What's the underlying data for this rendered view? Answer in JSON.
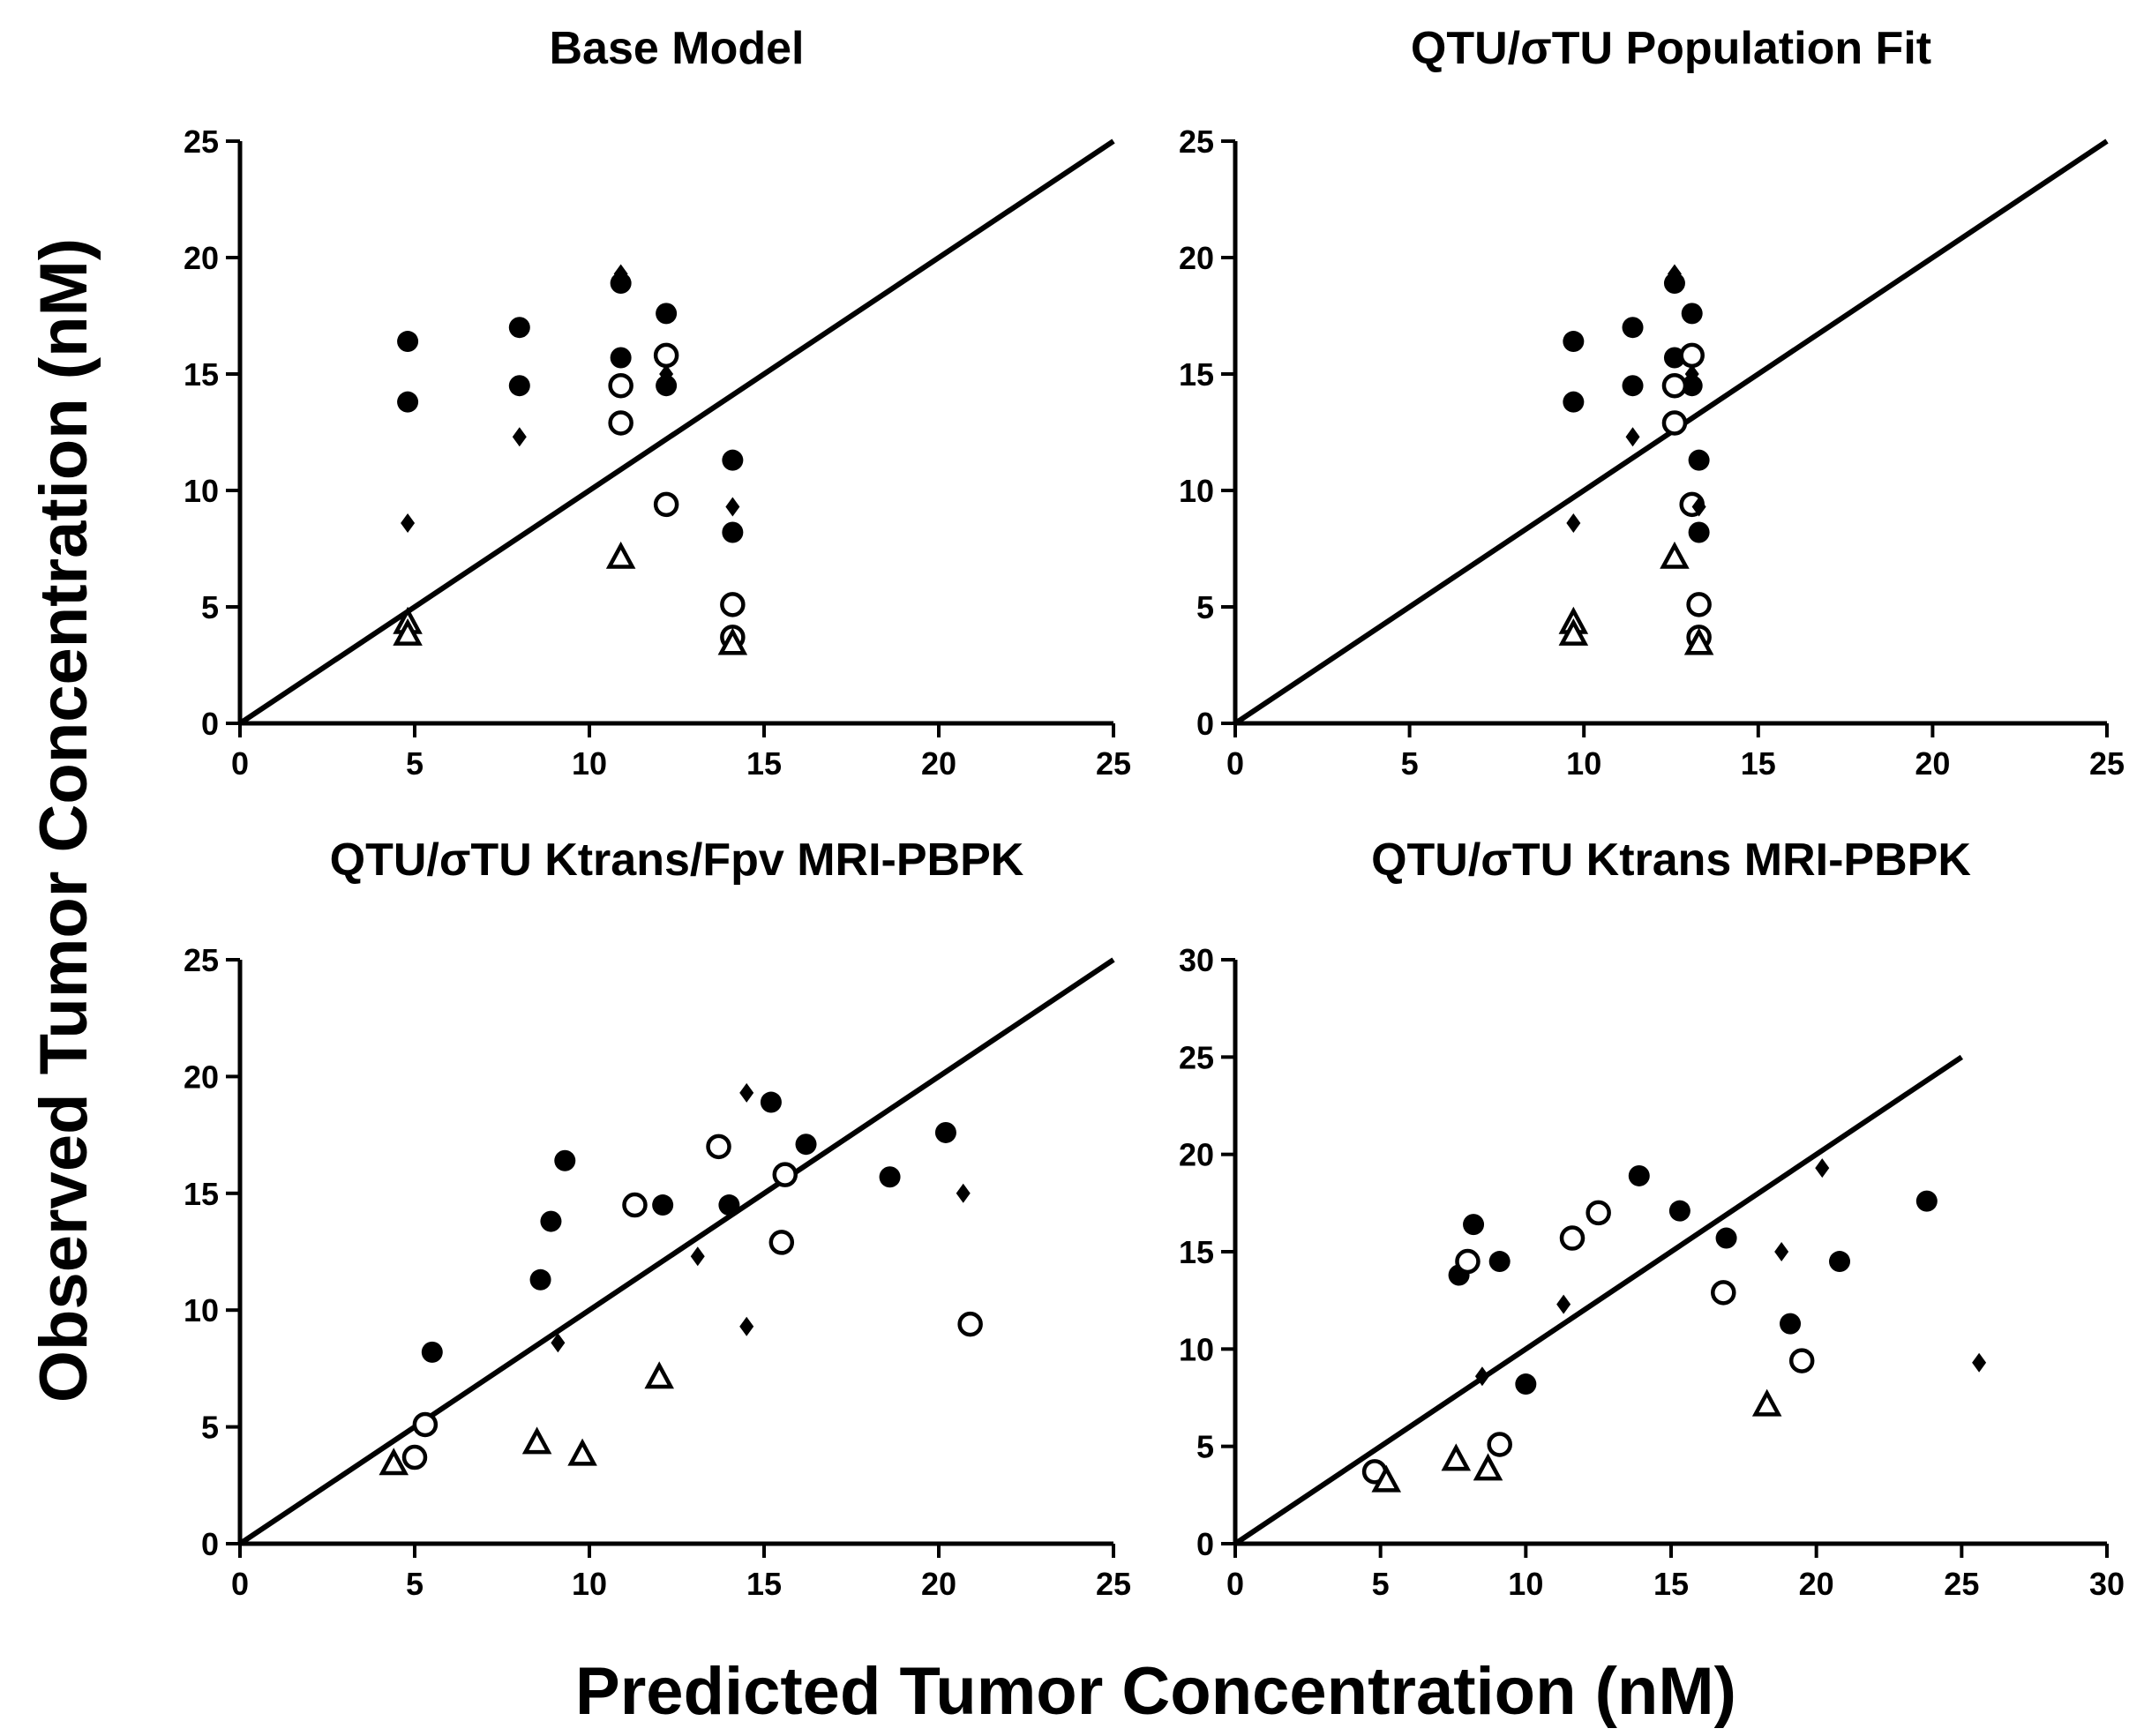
{
  "figure": {
    "xlabel": "Predicted Tumor Concentration (nM)",
    "ylabel": "Observed Tumor Concentration (nM)"
  },
  "chart_data": [
    {
      "type": "scatter",
      "title": "Base Model",
      "xlim": [
        0,
        25
      ],
      "ylim": [
        0,
        25
      ],
      "xticks": [
        "0",
        "5",
        "10",
        "15",
        "20",
        "25"
      ],
      "yticks": [
        "0",
        "5",
        "10",
        "15",
        "20",
        "25"
      ],
      "identity_line": [
        [
          0,
          0
        ],
        [
          25,
          25
        ]
      ],
      "series": [
        {
          "marker": "filled-circle",
          "points": [
            [
              4.8,
              16.4
            ],
            [
              4.8,
              13.8
            ],
            [
              8,
              17
            ],
            [
              8,
              14.5
            ],
            [
              10.9,
              18.9
            ],
            [
              10.9,
              15.7
            ],
            [
              12.2,
              17.6
            ],
            [
              12.2,
              14.5
            ],
            [
              14.1,
              11.3
            ],
            [
              14.1,
              8.2
            ]
          ]
        },
        {
          "marker": "open-circle",
          "points": [
            [
              10.9,
              14.5
            ],
            [
              10.9,
              12.9
            ],
            [
              12.2,
              15.8
            ],
            [
              12.2,
              9.4
            ],
            [
              14.1,
              5.1
            ],
            [
              14.1,
              3.7
            ]
          ]
        },
        {
          "marker": "diamond",
          "points": [
            [
              4.8,
              8.6
            ],
            [
              8,
              12.3
            ],
            [
              10.9,
              19.3
            ],
            [
              12.2,
              15
            ],
            [
              14.1,
              9.3
            ]
          ]
        },
        {
          "marker": "open-triangle",
          "points": [
            [
              4.8,
              4.3
            ],
            [
              4.8,
              3.8
            ],
            [
              10.9,
              7.1
            ],
            [
              14.1,
              3.4
            ]
          ]
        }
      ]
    },
    {
      "type": "scatter",
      "title": "QTU/σTU Population Fit",
      "xlim": [
        0,
        25
      ],
      "ylim": [
        0,
        25
      ],
      "xticks": [
        "0",
        "5",
        "10",
        "15",
        "20",
        "25"
      ],
      "yticks": [
        "0",
        "5",
        "10",
        "15",
        "20",
        "25"
      ],
      "identity_line": [
        [
          0,
          0
        ],
        [
          25,
          25
        ]
      ],
      "series": [
        {
          "marker": "filled-circle",
          "points": [
            [
              9.7,
              16.4
            ],
            [
              9.7,
              13.8
            ],
            [
              11.4,
              17
            ],
            [
              11.4,
              14.5
            ],
            [
              12.6,
              18.9
            ],
            [
              12.6,
              15.7
            ],
            [
              13.1,
              17.6
            ],
            [
              13.1,
              14.5
            ],
            [
              13.3,
              11.3
            ],
            [
              13.3,
              8.2
            ]
          ]
        },
        {
          "marker": "open-circle",
          "points": [
            [
              12.6,
              14.5
            ],
            [
              12.6,
              12.9
            ],
            [
              13.1,
              15.8
            ],
            [
              13.1,
              9.4
            ],
            [
              13.3,
              5.1
            ],
            [
              13.3,
              3.7
            ]
          ]
        },
        {
          "marker": "diamond",
          "points": [
            [
              9.7,
              8.6
            ],
            [
              11.4,
              12.3
            ],
            [
              12.6,
              19.3
            ],
            [
              13.1,
              15
            ],
            [
              13.3,
              9.3
            ]
          ]
        },
        {
          "marker": "open-triangle",
          "points": [
            [
              9.7,
              4.3
            ],
            [
              9.7,
              3.8
            ],
            [
              12.6,
              7.1
            ],
            [
              13.3,
              3.4
            ]
          ]
        }
      ]
    },
    {
      "type": "scatter",
      "title": "QTU/σTU Ktrans/Fpv MRI-PBPK",
      "xlim": [
        0,
        25
      ],
      "ylim": [
        0,
        25
      ],
      "xticks": [
        "0",
        "5",
        "10",
        "15",
        "20",
        "25"
      ],
      "yticks": [
        "0",
        "5",
        "10",
        "15",
        "20",
        "25"
      ],
      "identity_line": [
        [
          0,
          0
        ],
        [
          25,
          25
        ]
      ],
      "series": [
        {
          "marker": "filled-circle",
          "points": [
            [
              5.5,
              8.2
            ],
            [
              8.6,
              11.3
            ],
            [
              8.9,
              13.8
            ],
            [
              9.3,
              16.4
            ],
            [
              12.1,
              14.5
            ],
            [
              14,
              14.5
            ],
            [
              15.2,
              18.9
            ],
            [
              16.2,
              17.1
            ],
            [
              18.6,
              15.7
            ],
            [
              20.2,
              17.6
            ]
          ]
        },
        {
          "marker": "open-circle",
          "points": [
            [
              5,
              3.7
            ],
            [
              5.3,
              5.1
            ],
            [
              11.3,
              14.5
            ],
            [
              13.7,
              17
            ],
            [
              15.5,
              12.9
            ],
            [
              15.6,
              15.8
            ],
            [
              20.9,
              9.4
            ]
          ]
        },
        {
          "marker": "diamond",
          "points": [
            [
              9.1,
              8.6
            ],
            [
              13.1,
              12.3
            ],
            [
              14.5,
              9.3
            ],
            [
              14.5,
              19.3
            ],
            [
              20.7,
              15
            ]
          ]
        },
        {
          "marker": "open-triangle",
          "points": [
            [
              4.4,
              3.4
            ],
            [
              8.5,
              4.3
            ],
            [
              9.8,
              3.8
            ],
            [
              12,
              7.1
            ]
          ]
        }
      ]
    },
    {
      "type": "scatter",
      "title": "QTU/σTU Ktrans MRI-PBPK",
      "xlim": [
        0,
        30
      ],
      "ylim": [
        0,
        30
      ],
      "xticks": [
        "0",
        "5",
        "10",
        "15",
        "20",
        "25",
        "30"
      ],
      "yticks": [
        "0",
        "5",
        "10",
        "15",
        "20",
        "25",
        "30"
      ],
      "identity_line": [
        [
          0,
          0
        ],
        [
          25,
          25
        ]
      ],
      "series": [
        {
          "marker": "filled-circle",
          "points": [
            [
              7.7,
              13.8
            ],
            [
              8.2,
              16.4
            ],
            [
              9.1,
              14.5
            ],
            [
              10,
              8.2
            ],
            [
              13.9,
              18.9
            ],
            [
              15.3,
              17.1
            ],
            [
              16.9,
              15.7
            ],
            [
              19.1,
              11.3
            ],
            [
              20.8,
              14.5
            ],
            [
              23.8,
              17.6
            ]
          ]
        },
        {
          "marker": "open-circle",
          "points": [
            [
              4.8,
              3.7
            ],
            [
              8,
              14.5
            ],
            [
              9.1,
              5.1
            ],
            [
              11.6,
              15.7
            ],
            [
              12.5,
              17
            ],
            [
              16.8,
              12.9
            ],
            [
              19.5,
              9.4
            ]
          ]
        },
        {
          "marker": "diamond",
          "points": [
            [
              8.5,
              8.6
            ],
            [
              11.3,
              12.3
            ],
            [
              18.8,
              15
            ],
            [
              20.2,
              19.3
            ],
            [
              25.6,
              9.3
            ]
          ]
        },
        {
          "marker": "open-triangle",
          "points": [
            [
              5.2,
              3.2
            ],
            [
              7.6,
              4.3
            ],
            [
              8.7,
              3.8
            ],
            [
              18.3,
              7.1
            ]
          ]
        }
      ]
    }
  ]
}
